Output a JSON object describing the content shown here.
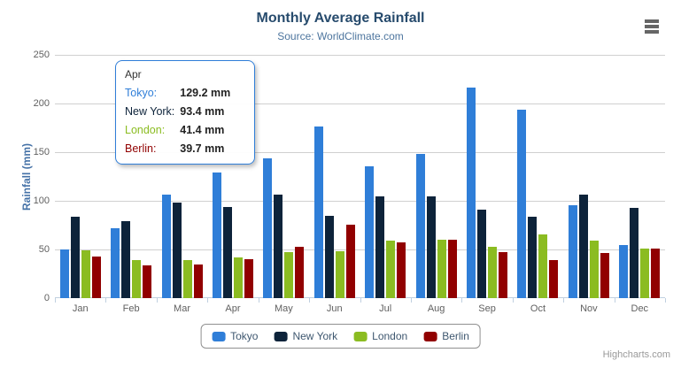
{
  "header": {
    "title": "Monthly Average Rainfall",
    "subtitle": "Source: WorldClimate.com"
  },
  "chart_data": {
    "type": "bar",
    "title": "Monthly Average Rainfall",
    "subtitle": "Source: WorldClimate.com",
    "categories": [
      "Jan",
      "Feb",
      "Mar",
      "Apr",
      "May",
      "Jun",
      "Jul",
      "Aug",
      "Sep",
      "Oct",
      "Nov",
      "Dec"
    ],
    "series": [
      {
        "name": "Tokyo",
        "color": "#2f7ed8",
        "values": [
          49.9,
          71.5,
          106.4,
          129.2,
          144.0,
          176.0,
          135.6,
          148.5,
          216.4,
          194.1,
          95.6,
          54.4
        ]
      },
      {
        "name": "New York",
        "color": "#0d233a",
        "values": [
          83.6,
          78.8,
          98.5,
          93.4,
          106.0,
          84.5,
          105.0,
          104.3,
          91.2,
          83.5,
          106.6,
          92.3
        ]
      },
      {
        "name": "London",
        "color": "#8bbc21",
        "values": [
          48.9,
          38.8,
          39.3,
          41.4,
          47.0,
          48.3,
          59.0,
          59.6,
          52.4,
          65.2,
          59.3,
          51.2
        ]
      },
      {
        "name": "Berlin",
        "color": "#910000",
        "values": [
          42.4,
          33.2,
          34.5,
          39.7,
          52.6,
          75.5,
          57.4,
          60.4,
          47.6,
          39.1,
          46.8,
          51.1
        ]
      }
    ],
    "xlabel": "",
    "ylabel": "Rainfall (mm)",
    "ylim": [
      0,
      250
    ],
    "yticks": [
      0,
      50,
      100,
      150,
      200,
      250
    ],
    "unit": "mm",
    "grid": true,
    "legend_position": "bottom-center"
  },
  "tooltip": {
    "header": "Apr",
    "rows": [
      {
        "label": "Tokyo:",
        "value": "129.2 mm",
        "color": "#2f7ed8"
      },
      {
        "label": "New York:",
        "value": "93.4 mm",
        "color": "#0d233a"
      },
      {
        "label": "London:",
        "value": "41.4 mm",
        "color": "#8bbc21"
      },
      {
        "label": "Berlin:",
        "value": "39.7 mm",
        "color": "#910000"
      }
    ]
  },
  "icons": {
    "context_menu": "hamburger-menu-icon"
  },
  "colors": {
    "title": "#274b6d",
    "subtitle": "#4d759e",
    "y_axis_title": "#4572a7",
    "axis_labels": "#606060",
    "axis_line": "#c0d0e0",
    "gridline": "#d0d0d0",
    "tooltip_border": "#2f7ed8",
    "legend_border": "#909090",
    "legend_text": "#3e576f"
  },
  "credits": {
    "label": "Highcharts.com"
  }
}
